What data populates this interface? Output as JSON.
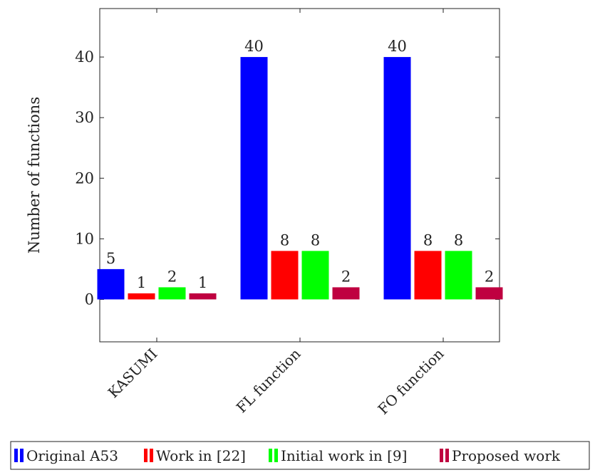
{
  "chart_data": {
    "type": "bar",
    "categories": [
      "KASUMI",
      "FL function",
      "FO function"
    ],
    "series": [
      {
        "name": "Original A53",
        "values": [
          5,
          40,
          40
        ],
        "color": "#0000ff"
      },
      {
        "name": "Work in [22]",
        "values": [
          1,
          8,
          8
        ],
        "color": "#ff0000"
      },
      {
        "name": "Initial work in [9]",
        "values": [
          2,
          8,
          8
        ],
        "color": "#00ff00"
      },
      {
        "name": "Proposed work",
        "values": [
          1,
          2,
          2
        ],
        "color": "#bf0040"
      }
    ],
    "ylabel": "Number of functions",
    "xlabel": "",
    "ylim": [
      -7,
      48
    ],
    "yticks": [
      0,
      10,
      20,
      30,
      40
    ],
    "grid": false,
    "legend_position": "bottom"
  }
}
